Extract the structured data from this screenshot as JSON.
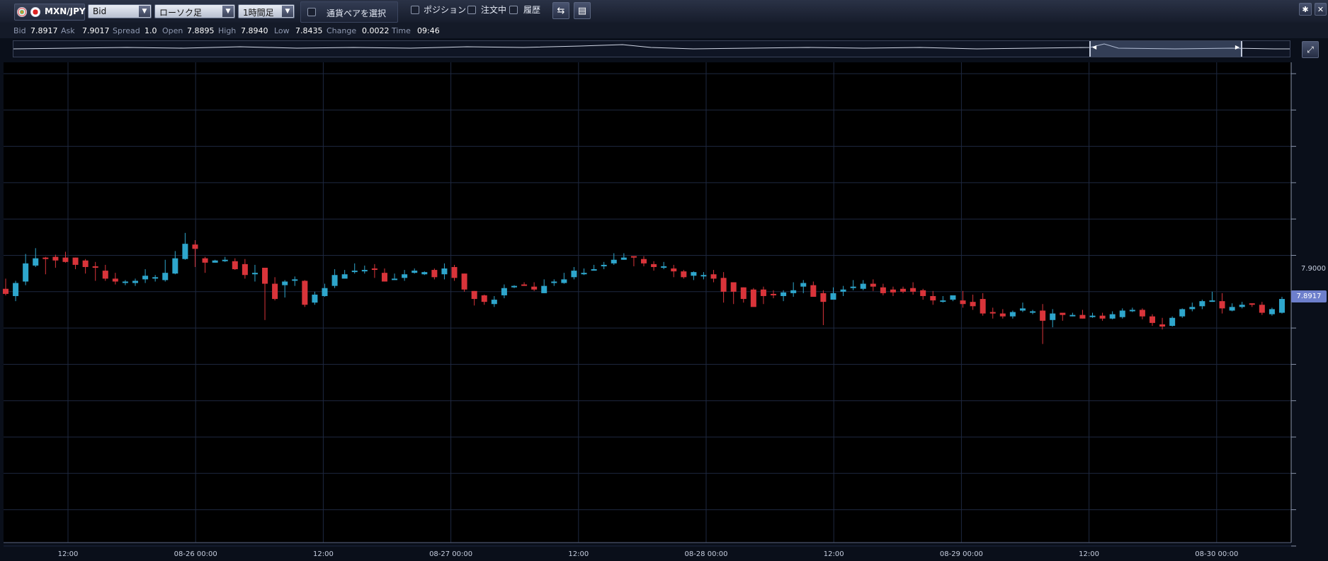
{
  "toolbar": {
    "pair": "MXN/JPY",
    "price_type": "Bid",
    "chart_style": "ローソク足",
    "timeframe": "1時間足",
    "pair_select_label": "通貨ペアを選択",
    "position_label": "ポジション",
    "order_label": "注文中",
    "history_label": "履歴"
  },
  "quote": {
    "bid_label": "Bid",
    "bid": "7.8917",
    "ask_label": "Ask",
    "ask": "7.9017",
    "spread_label": "Spread",
    "spread": "1.0",
    "open_label": "Open",
    "open": "7.8895",
    "high_label": "High",
    "high": "7.8940",
    "low_label": "Low",
    "low": "7.8435",
    "change_label": "Change",
    "change": "0.0022",
    "time_label": "Time",
    "time": "09:46"
  },
  "current_price_tag": "7.8917",
  "colors": {
    "up": "#2ea6cc",
    "down": "#d9343a",
    "grid": "#1e2840",
    "background": "#000000"
  },
  "chart_data": {
    "type": "candlestick",
    "x_tick_labels": [
      "12:00",
      "08-26 00:00",
      "12:00",
      "08-27 00:00",
      "12:00",
      "08-28 00:00",
      "12:00",
      "08-29 00:00",
      "12:00",
      "08-30 00:00"
    ],
    "y_tick_labels": [
      "7.9000"
    ],
    "current_price": 7.8917,
    "candles": [
      [
        7.8971,
        7.8964,
        7.8985,
        7.8962
      ],
      [
        7.8961,
        7.8979,
        7.8982,
        7.8954
      ],
      [
        7.8981,
        7.9006,
        7.9019,
        7.8976
      ],
      [
        7.9003,
        7.9013,
        7.9027,
        7.9001
      ],
      [
        7.9014,
        7.9012,
        7.9015,
        7.8991
      ],
      [
        7.9015,
        7.901,
        7.9018,
        7.9
      ],
      [
        7.9014,
        7.9008,
        7.9022,
        7.9007
      ],
      [
        7.9014,
        7.9004,
        7.9014,
        7.8998
      ],
      [
        7.901,
        7.9001,
        7.9012,
        7.8992
      ],
      [
        7.9002,
        7.9,
        7.9008,
        7.8982
      ],
      [
        7.8996,
        7.8985,
        7.9004,
        7.8982
      ],
      [
        7.8985,
        7.8981,
        7.8993,
        7.8977
      ],
      [
        7.8981,
        7.8981,
        7.8983,
        7.8976
      ],
      [
        7.8979,
        7.8982,
        7.8985,
        7.8975
      ],
      [
        7.8984,
        7.8989,
        7.8998,
        7.8979
      ],
      [
        7.8986,
        7.8987,
        7.899,
        7.8981
      ],
      [
        7.8983,
        7.8993,
        7.9011,
        7.8981
      ],
      [
        7.8992,
        7.9013,
        7.9023,
        7.8991
      ],
      [
        7.9012,
        7.9033,
        7.9048,
        7.9011
      ],
      [
        7.9032,
        7.9026,
        7.9038,
        7.9001
      ],
      [
        7.9013,
        7.9007,
        7.9015,
        7.8993
      ],
      [
        7.9007,
        7.901,
        7.9011,
        7.9007
      ],
      [
        7.9009,
        7.9011,
        7.9015,
        7.9008
      ],
      [
        7.9009,
        7.8998,
        7.9013,
        7.8997
      ],
      [
        7.9005,
        7.899,
        7.9012,
        7.8985
      ],
      [
        7.8991,
        7.8993,
        7.9004,
        7.8981
      ],
      [
        7.9,
        7.8978,
        7.9,
        7.8928
      ],
      [
        7.8978,
        7.8957,
        7.8987,
        7.8955
      ],
      [
        7.8976,
        7.8981,
        7.8983,
        7.8959
      ],
      [
        7.8983,
        7.8984,
        7.8988,
        7.8975
      ],
      [
        7.8982,
        7.8949,
        7.8983,
        7.8946
      ],
      [
        7.8952,
        7.8963,
        7.8967,
        7.8949
      ],
      [
        7.8961,
        7.8972,
        7.8978,
        7.896
      ],
      [
        7.8975,
        7.899,
        7.8998,
        7.8972
      ],
      [
        7.8985,
        7.8991,
        7.8997,
        7.8987
      ],
      [
        7.8995,
        7.8996,
        7.9006,
        7.8992
      ],
      [
        7.8995,
        7.8997,
        7.9003,
        7.8992
      ],
      [
        7.8999,
        7.8998,
        7.9005,
        7.8986
      ],
      [
        7.8993,
        7.8981,
        7.8999,
        7.8981
      ],
      [
        7.8985,
        7.8985,
        7.8992,
        7.8985
      ],
      [
        7.8986,
        7.8991,
        7.8997,
        7.8982
      ],
      [
        7.8993,
        7.8996,
        7.8999,
        7.8992
      ],
      [
        7.8991,
        7.8994,
        7.8995,
        7.899
      ],
      [
        7.8997,
        7.8987,
        7.8999,
        7.8984
      ],
      [
        7.8991,
        7.8999,
        7.9006,
        7.8984
      ],
      [
        7.9001,
        7.8986,
        7.9004,
        7.8982
      ],
      [
        7.8992,
        7.897,
        7.8992,
        7.8967
      ],
      [
        7.8968,
        7.8957,
        7.8968,
        7.8948
      ],
      [
        7.8962,
        7.8953,
        7.8963,
        7.8949
      ],
      [
        7.895,
        7.8956,
        7.8961,
        7.8946
      ],
      [
        7.8962,
        7.8972,
        7.8977,
        7.8958
      ],
      [
        7.8973,
        7.8975,
        7.8976,
        7.8972
      ],
      [
        7.8977,
        7.8976,
        7.898,
        7.8975
      ],
      [
        7.8974,
        7.897,
        7.898,
        7.8968
      ],
      [
        7.8965,
        7.8975,
        7.8984,
        7.8965
      ],
      [
        7.8979,
        7.8981,
        7.8984,
        7.8975
      ],
      [
        7.8979,
        7.8984,
        7.8993,
        7.8978
      ],
      [
        7.8987,
        7.8996,
        7.9001,
        7.8984
      ],
      [
        7.8991,
        7.8993,
        7.8999,
        7.899
      ],
      [
        7.8996,
        7.8998,
        7.9004,
        7.8996
      ],
      [
        7.9002,
        7.9004,
        7.9008,
        7.8998
      ],
      [
        7.9006,
        7.9011,
        7.902,
        7.9004
      ],
      [
        7.9011,
        7.9014,
        7.902,
        7.9011
      ],
      [
        7.9016,
        7.9014,
        7.9016,
        7.9002
      ],
      [
        7.9012,
        7.9006,
        7.9016,
        7.9002
      ],
      [
        7.9005,
        7.9001,
        7.9009,
        7.8996
      ],
      [
        7.9001,
        7.9002,
        7.9008,
        7.8998
      ],
      [
        7.8999,
        7.8995,
        7.9004,
        7.8987
      ],
      [
        7.8995,
        7.8987,
        7.8997,
        7.8985
      ],
      [
        7.8989,
        7.8994,
        7.8995,
        7.8983
      ],
      [
        7.899,
        7.899,
        7.8994,
        7.8984
      ],
      [
        7.8991,
        7.8985,
        7.8997,
        7.898
      ],
      [
        7.8986,
        7.8967,
        7.8994,
        7.8952
      ],
      [
        7.898,
        7.8967,
        7.8979,
        7.895
      ],
      [
        7.8973,
        7.8957,
        7.8973,
        7.8952
      ],
      [
        7.897,
        7.8946,
        7.8972,
        7.8956
      ],
      [
        7.897,
        7.8961,
        7.8974,
        7.895
      ],
      [
        7.8964,
        7.8962,
        7.8969,
        7.8958
      ],
      [
        7.8961,
        7.8966,
        7.8969,
        7.8954
      ],
      [
        7.8965,
        7.8969,
        7.898,
        7.896
      ],
      [
        7.8974,
        7.8979,
        7.8983,
        7.8965
      ],
      [
        7.8976,
        7.896,
        7.8981,
        7.896
      ],
      [
        7.8965,
        7.8953,
        7.8969,
        7.8921
      ],
      [
        7.8956,
        7.8965,
        7.8973,
        7.8962
      ],
      [
        7.8967,
        7.897,
        7.8975,
        7.8961
      ],
      [
        7.8972,
        7.8974,
        7.8983,
        7.8969
      ],
      [
        7.8971,
        7.8978,
        7.8983,
        7.8969
      ],
      [
        7.8978,
        7.8974,
        7.8984,
        7.8968
      ],
      [
        7.8973,
        7.8965,
        7.8978,
        7.8962
      ],
      [
        7.897,
        7.8966,
        7.8974,
        7.8961
      ],
      [
        7.8971,
        7.8967,
        7.8974,
        7.8965
      ],
      [
        7.8972,
        7.8967,
        7.898,
        7.8963
      ],
      [
        7.8969,
        7.8961,
        7.8971,
        7.8956
      ],
      [
        7.8961,
        7.8955,
        7.8968,
        7.8949
      ],
      [
        7.8954,
        7.8955,
        7.8961,
        7.8952
      ],
      [
        7.8956,
        7.8962,
        7.8961,
        7.8954
      ],
      [
        7.8955,
        7.895,
        7.8968,
        7.8945
      ],
      [
        7.8953,
        7.8947,
        7.8963,
        7.8942
      ],
      [
        7.8957,
        7.8937,
        7.8965,
        7.8934
      ],
      [
        7.8939,
        7.8937,
        7.8945,
        7.893
      ],
      [
        7.8937,
        7.8933,
        7.8943,
        7.893
      ],
      [
        7.8933,
        7.8939,
        7.8941,
        7.893
      ],
      [
        7.8941,
        7.8944,
        7.8952,
        7.8939
      ],
      [
        7.894,
        7.894,
        7.8942,
        7.8936
      ],
      [
        7.8941,
        7.8927,
        7.895,
        7.8895
      ],
      [
        7.8928,
        7.8937,
        7.8943,
        7.8918
      ],
      [
        7.8938,
        7.8935,
        7.8936,
        7.8927
      ],
      [
        7.8935,
        7.8935,
        7.8938,
        7.8933
      ],
      [
        7.8935,
        7.893,
        7.8942,
        7.893
      ],
      [
        7.8932,
        7.8934,
        7.8938,
        7.8931
      ],
      [
        7.8934,
        7.893,
        7.8938,
        7.8927
      ],
      [
        7.893,
        7.8936,
        7.894,
        7.8929
      ],
      [
        7.8932,
        7.8941,
        7.8944,
        7.893
      ],
      [
        7.8941,
        7.8942,
        7.8945,
        7.8939
      ],
      [
        7.8942,
        7.8933,
        7.8944,
        7.8929
      ],
      [
        7.8933,
        7.8924,
        7.8936,
        7.892
      ],
      [
        7.8922,
        7.8919,
        7.8931,
        7.8915
      ],
      [
        7.892,
        7.8931,
        7.8933,
        7.8919
      ],
      [
        7.8933,
        7.8943,
        7.8944,
        7.8931
      ],
      [
        7.8943,
        7.8946,
        7.8952,
        7.894
      ],
      [
        7.8947,
        7.8954,
        7.8956,
        7.8943
      ],
      [
        7.8955,
        7.8955,
        7.8967,
        7.8953
      ],
      [
        7.8954,
        7.8944,
        7.8965,
        7.8937
      ],
      [
        7.8941,
        7.8946,
        7.8951,
        7.894
      ],
      [
        7.8946,
        7.8949,
        7.8953,
        7.8944
      ],
      [
        7.8951,
        7.8949,
        7.8951,
        7.8946
      ],
      [
        7.8949,
        7.8938,
        7.8953,
        7.8935
      ],
      [
        7.8936,
        7.8943,
        7.8945,
        7.8934
      ],
      [
        7.8938,
        7.8957,
        7.896,
        7.8937
      ]
    ]
  }
}
